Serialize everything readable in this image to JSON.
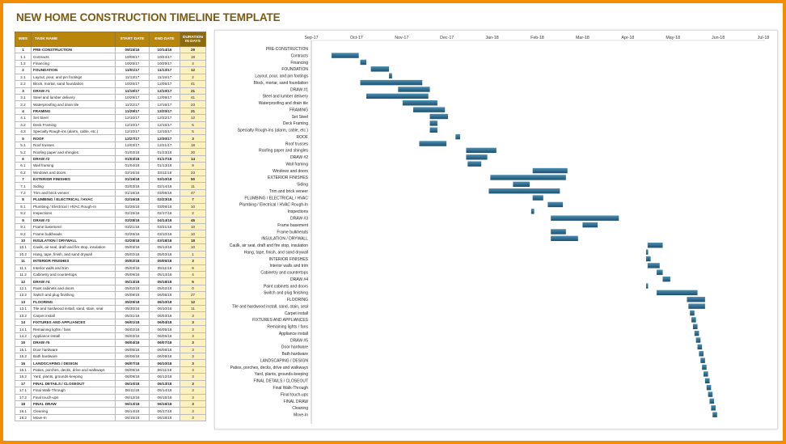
{
  "title": "NEW HOME CONSTRUCTION TIMELINE TEMPLATE",
  "columns": {
    "wbs": "WBS",
    "task": "TASK NAME",
    "start": "START DATE",
    "end": "END DATE",
    "duration": "DURATION IN DAYS"
  },
  "colors": {
    "header": "#b8860b",
    "header_duration": "#8c6a10",
    "duration_fill": "#fdf1c0",
    "bar": "#2b6a8c",
    "title": "#7a5a10",
    "border": "#f28c00"
  },
  "tasks": [
    [
      "1",
      "PRE-CONSTRUCTION",
      "09/15/16",
      "10/14/16",
      "29",
      1
    ],
    [
      "1.1",
      "Contracts",
      "10/06/17",
      "10/24/17",
      "18",
      0
    ],
    [
      "1.2",
      "Financing",
      "10/25/17",
      "10/29/17",
      "4",
      0
    ],
    [
      "2",
      "FOUNDATION",
      "11/01/17",
      "11/13/17",
      "12",
      1
    ],
    [
      "2.1",
      "Layout, pour, and pin footings",
      "11/13/17",
      "11/15/17",
      "2",
      0
    ],
    [
      "2.2",
      "Block, mortar, sand foundation",
      "10/25/17",
      "12/05/17",
      "41",
      0
    ],
    [
      "3",
      "DRAW #1",
      "11/19/17",
      "12/10/17",
      "21",
      1
    ],
    [
      "3.1",
      "Steel and lumber delivery",
      "10/29/17",
      "12/09/17",
      "41",
      0
    ],
    [
      "3.2",
      "Waterproofing and drain tile",
      "11/22/17",
      "12/15/17",
      "23",
      0
    ],
    [
      "4",
      "FRAMING",
      "11/29/17",
      "12/20/17",
      "21",
      1
    ],
    [
      "4.1",
      "Set Steel",
      "12/10/17",
      "12/22/17",
      "12",
      0
    ],
    [
      "4.2",
      "Deck Framing",
      "12/10/17",
      "12/15/17",
      "5",
      0
    ],
    [
      "4.3",
      "Specialty Rough-ins (alarm, cable, etc.)",
      "12/10/17",
      "12/15/17",
      "5",
      0
    ],
    [
      "5",
      "ROOF",
      "12/27/17",
      "12/30/17",
      "3",
      1
    ],
    [
      "5.1",
      "Roof trusses",
      "12/03/17",
      "12/21/17",
      "18",
      0
    ],
    [
      "5.2",
      "Roofing paper and shingles",
      "01/03/18",
      "01/23/18",
      "20",
      0
    ],
    [
      "6",
      "DRAW #2",
      "01/03/18",
      "01/17/18",
      "14",
      1
    ],
    [
      "6.1",
      "Wall framing",
      "01/04/18",
      "01/13/18",
      "9",
      0
    ],
    [
      "6.2",
      "Windows and doors",
      "02/16/18",
      "03/11/18",
      "23",
      0
    ],
    [
      "7",
      "EXTERIOR FINISHES",
      "01/19/18",
      "03/10/18",
      "50",
      1
    ],
    [
      "7.1",
      "Siding",
      "02/03/18",
      "02/14/18",
      "11",
      0
    ],
    [
      "7.2",
      "Trim and brick veneer",
      "01/18/18",
      "03/06/18",
      "47",
      0
    ],
    [
      "8",
      "PLUMBING / ELECTRICAL / HVAC",
      "02/16/18",
      "02/23/18",
      "7",
      1
    ],
    [
      "8.1",
      "Plumbing / Electrical / HVAC Rough-In",
      "02/26/18",
      "03/08/18",
      "10",
      0
    ],
    [
      "8.2",
      "Inspections",
      "02/15/18",
      "02/17/18",
      "2",
      0
    ],
    [
      "9",
      "DRAW #3",
      "02/28/18",
      "04/14/18",
      "45",
      1
    ],
    [
      "9.1",
      "Frame basement",
      "03/21/18",
      "03/31/18",
      "10",
      0
    ],
    [
      "9.2",
      "Frame bulkheads",
      "02/28/18",
      "03/10/18",
      "10",
      0
    ],
    [
      "10",
      "INSULATION / DRYWALL",
      "02/28/18",
      "03/18/18",
      "18",
      1
    ],
    [
      "10.1",
      "Caulk, air seal, draft and fire stop, insulation",
      "05/03/18",
      "05/13/18",
      "10",
      0
    ],
    [
      "10.2",
      "Hang, tape, finish, and sand drywall",
      "05/02/18",
      "05/03/18",
      "1",
      0
    ],
    [
      "11",
      "INTERIOR FINISHES",
      "05/02/18",
      "05/05/18",
      "3",
      1
    ],
    [
      "11.1",
      "Interior walls and trim",
      "05/03/18",
      "05/11/18",
      "8",
      0
    ],
    [
      "11.2",
      "Cabinetry and countertops",
      "05/09/18",
      "05/13/18",
      "4",
      0
    ],
    [
      "12",
      "DRAW #4",
      "05/13/18",
      "05/18/18",
      "5",
      1
    ],
    [
      "12.1",
      "Paint cabinets and doors",
      "05/02/18",
      "05/02/18",
      "0",
      0
    ],
    [
      "12.2",
      "Switch and plug finishing",
      "05/09/18",
      "06/05/18",
      "27",
      0
    ],
    [
      "13",
      "FLOORING",
      "05/29/18",
      "06/10/18",
      "12",
      1
    ],
    [
      "13.1",
      "Tile and hardwood install, sand, stain, seal",
      "05/30/18",
      "06/10/18",
      "11",
      0
    ],
    [
      "13.2",
      "Carpet install",
      "05/31/18",
      "06/03/18",
      "3",
      0
    ],
    [
      "14",
      "FIXTURES AND APPLIANCES",
      "06/01/18",
      "06/04/18",
      "3",
      1
    ],
    [
      "14.1",
      "Remaining lights / fans",
      "06/02/18",
      "06/05/18",
      "3",
      0
    ],
    [
      "14.2",
      "Appliance install",
      "06/03/18",
      "06/06/18",
      "3",
      0
    ],
    [
      "15",
      "DRAW #5",
      "06/04/18",
      "06/07/18",
      "3",
      1
    ],
    [
      "15.1",
      "Door hardware",
      "06/05/18",
      "06/08/18",
      "3",
      0
    ],
    [
      "15.2",
      "Bath hardware",
      "06/06/18",
      "06/09/18",
      "3",
      0
    ],
    [
      "16",
      "LANDSCAPING / DESIGN",
      "06/07/18",
      "06/10/18",
      "3",
      1
    ],
    [
      "16.1",
      "Patios, porches, decks, drive and walkways",
      "06/08/18",
      "06/11/18",
      "3",
      0
    ],
    [
      "16.2",
      "Yard, plants, grounds-keeping",
      "06/09/18",
      "06/12/18",
      "3",
      0
    ],
    [
      "17",
      "FINAL DETAILS / CLOSEOUT",
      "06/10/18",
      "06/13/18",
      "3",
      1
    ],
    [
      "17.1",
      "Final Walk-Through",
      "06/11/18",
      "06/14/18",
      "3",
      0
    ],
    [
      "17.2",
      "Final touch-ups",
      "06/12/18",
      "06/15/18",
      "3",
      0
    ],
    [
      "18",
      "FINAL DRAW",
      "06/13/18",
      "06/16/18",
      "3",
      1
    ],
    [
      "18.1",
      "Cleaning",
      "06/14/18",
      "06/17/18",
      "3",
      0
    ],
    [
      "18.2",
      "Move-In",
      "06/15/18",
      "06/18/18",
      "3",
      0
    ]
  ],
  "chart_data": {
    "type": "gantt",
    "x_ticks": [
      "Sep-17",
      "Oct-17",
      "Nov-17",
      "Dec-17",
      "Jan-18",
      "Feb-18",
      "Mar-18",
      "Apr-18",
      "May-18",
      "Jun-18",
      "Jul-18"
    ]
  }
}
